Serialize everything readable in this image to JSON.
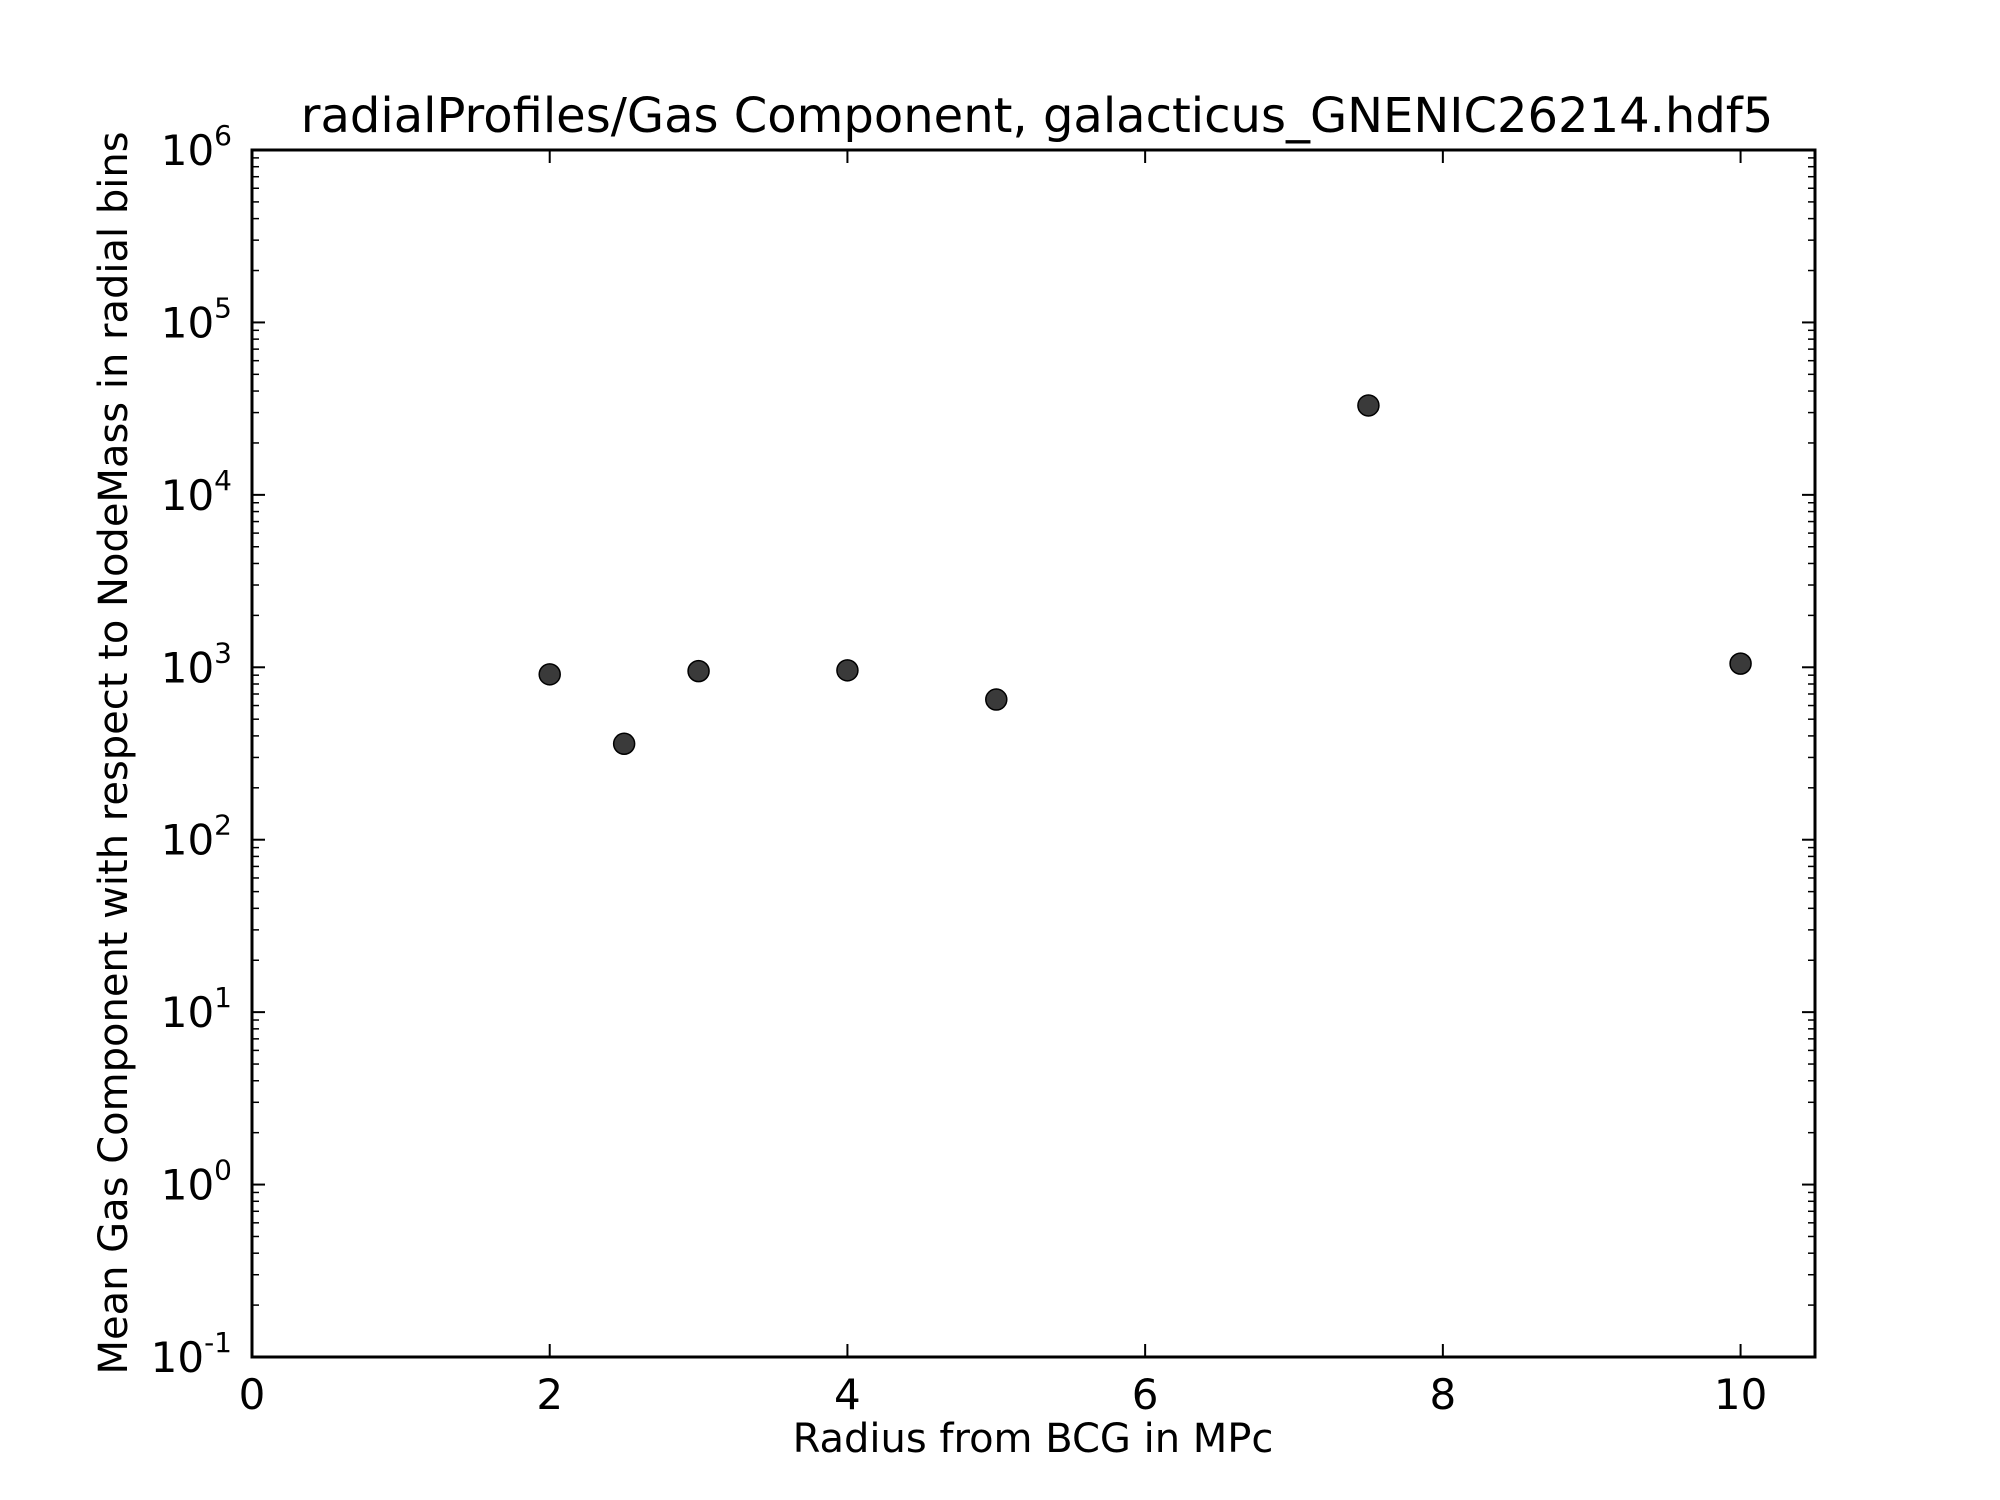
{
  "chart_data": {
    "type": "scatter",
    "title": "radialProfiles/Gas Component, galacticus_GNENIC26214.hdf5",
    "xlabel": "Radius from BCG in MPc",
    "ylabel": "Mean Gas Component with respect to NodeMass in radial bins",
    "xlim": [
      0,
      10.5
    ],
    "ylim": [
      0.1,
      1000000
    ],
    "yscale": "log",
    "grid": false,
    "x_ticks": [
      0,
      2,
      4,
      6,
      8,
      10
    ],
    "x_tick_labels": [
      "0",
      "2",
      "4",
      "6",
      "8",
      "10"
    ],
    "y_ticks": [
      {
        "value": 0.1,
        "base": "10",
        "exp": "-1"
      },
      {
        "value": 1,
        "base": "10",
        "exp": "0"
      },
      {
        "value": 10,
        "base": "10",
        "exp": "1"
      },
      {
        "value": 100,
        "base": "10",
        "exp": "2"
      },
      {
        "value": 1000,
        "base": "10",
        "exp": "3"
      },
      {
        "value": 10000,
        "base": "10",
        "exp": "4"
      },
      {
        "value": 100000,
        "base": "10",
        "exp": "5"
      },
      {
        "value": 1000000,
        "base": "10",
        "exp": "6"
      }
    ],
    "marker_color": "#3a3a3a",
    "series": [
      {
        "points": [
          {
            "x": 2.0,
            "y": 910
          },
          {
            "x": 2.5,
            "y": 360
          },
          {
            "x": 3.0,
            "y": 950
          },
          {
            "x": 4.0,
            "y": 960
          },
          {
            "x": 5.0,
            "y": 650
          },
          {
            "x": 7.5,
            "y": 33000
          },
          {
            "x": 10.0,
            "y": 1050
          }
        ]
      }
    ]
  }
}
